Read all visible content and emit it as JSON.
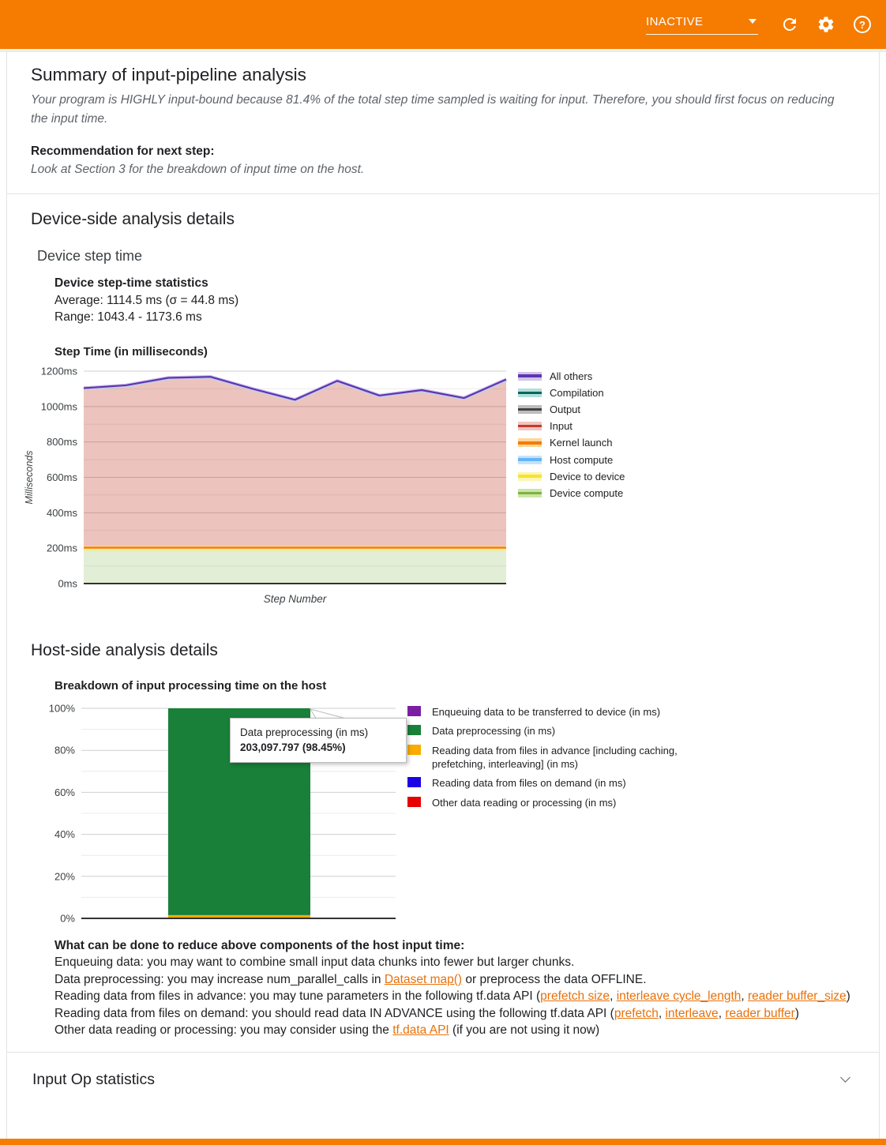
{
  "header": {
    "status_label": "INACTIVE",
    "bg_color": "#F57C00"
  },
  "summary": {
    "title": "Summary of input-pipeline analysis",
    "body": "Your program is HIGHLY input-bound because 81.4% of the total step time sampled is waiting for input. Therefore, you should first focus on reducing the input time.",
    "recommendation_label": "Recommendation for next step:",
    "recommendation": "Look at Section 3 for the breakdown of input time on the host."
  },
  "device_section": {
    "title": "Device-side analysis details",
    "subtitle": "Device step time",
    "stats_title": "Device step-time statistics",
    "average_line": "Average: 1114.5 ms (σ = 44.8 ms)",
    "range_line": "Range: 1043.4 - 1173.6 ms",
    "chart_title": "Step Time (in milliseconds)"
  },
  "host_section": {
    "title": "Host-side analysis details",
    "chart_title": "Breakdown of input processing time on the host"
  },
  "chart_data": [
    {
      "id": "device_step_time",
      "type": "area",
      "title": "Step Time (in milliseconds)",
      "xlabel": "Step Number",
      "ylabel": "Milliseconds",
      "ylim": [
        0,
        1200
      ],
      "yticks": [
        0,
        200,
        400,
        600,
        800,
        1000,
        1200
      ],
      "ytick_labels": [
        "0ms",
        "200ms",
        "400ms",
        "600ms",
        "800ms",
        "1000ms",
        "1200ms"
      ],
      "grid": "on",
      "legend_position": "right",
      "total_step_time_ms": [
        1104,
        1120,
        1162,
        1168,
        1100,
        1038,
        1145,
        1062,
        1093,
        1048,
        1153
      ],
      "series": [
        {
          "name": "All others",
          "dark": "#5E35B1",
          "light": "#D1C4E9",
          "values": [
            3,
            3,
            3,
            3,
            3,
            3,
            3,
            3,
            3,
            3,
            3
          ]
        },
        {
          "name": "Compilation",
          "dark": "#00695C",
          "light": "#B2DFDB",
          "values": [
            3,
            3,
            3,
            3,
            3,
            3,
            3,
            3,
            3,
            3,
            3
          ]
        },
        {
          "name": "Output",
          "dark": "#424242",
          "light": "#BDBDBD",
          "values": [
            0,
            0,
            0,
            0,
            0,
            0,
            0,
            0,
            0,
            0,
            0
          ],
          "line": false
        },
        {
          "name": "Input",
          "dark": "#C53929",
          "light": "#EFC4C0",
          "values": [
            895,
            911,
            953,
            959,
            891,
            829,
            936,
            853,
            884,
            839,
            944
          ],
          "line": false,
          "fill": "rgba(197,57,41,0.3)"
        },
        {
          "name": "Kernel launch",
          "dark": "#F57C00",
          "light": "#FFD699",
          "values": [
            7,
            7,
            7,
            7,
            7,
            7,
            7,
            7,
            7,
            7,
            7
          ]
        },
        {
          "name": "Host compute",
          "dark": "#64B5F6",
          "light": "#C6E2FB",
          "values": [
            0,
            0,
            0,
            0,
            0,
            0,
            0,
            0,
            0,
            0,
            0
          ],
          "line": false
        },
        {
          "name": "Device to device",
          "dark": "#F7E231",
          "light": "#FCF6B1",
          "values": [
            3,
            3,
            3,
            3,
            3,
            3,
            3,
            3,
            3,
            3,
            3
          ]
        },
        {
          "name": "Device compute",
          "dark": "#7CB342",
          "light": "#CDE5A8",
          "values": [
            193,
            193,
            193,
            193,
            193,
            193,
            193,
            193,
            193,
            193,
            193
          ],
          "fill": "rgba(124,179,66,0.22)"
        }
      ]
    },
    {
      "id": "host_input_breakdown",
      "type": "bar",
      "title": "Breakdown of input processing time on the host",
      "ylim": [
        0,
        100
      ],
      "yticks": [
        0,
        20,
        40,
        60,
        80,
        100
      ],
      "ytick_labels": [
        "0%",
        "20%",
        "40%",
        "60%",
        "80%",
        "100%"
      ],
      "grid": "on",
      "legend_position": "right",
      "series": [
        {
          "name": "Enqueuing data to be transferred to device (in ms)",
          "color": "#7B1FA2",
          "percent": 0
        },
        {
          "name": "Data preprocessing (in ms)",
          "color": "#188038",
          "percent": 98.45,
          "value_ms": 203097.797
        },
        {
          "name": "Reading data from files in advance [including caching, prefetching, interleaving] (in ms)",
          "color": "#F9AB00",
          "percent": 1.55
        },
        {
          "name": "Reading data from files on demand (in ms)",
          "color": "#1E00E5",
          "percent": 0
        },
        {
          "name": "Other data reading or processing (in ms)",
          "color": "#E60000",
          "percent": 0
        }
      ],
      "tooltip": {
        "label": "Data preprocessing (in ms)",
        "value": "203,097.797 (98.45%)"
      }
    }
  ],
  "tips": {
    "title": "What can be done to reduce above components of the host input time:",
    "link_color": "#E8710A",
    "lines": [
      {
        "segments": [
          {
            "t": "Enqueuing data: you may want to combine small input data chunks into fewer but larger chunks."
          }
        ]
      },
      {
        "segments": [
          {
            "t": "Data preprocessing: you may increase num_parallel_calls in "
          },
          {
            "t": "Dataset map()",
            "link": true
          },
          {
            "t": " or preprocess the data OFFLINE."
          }
        ]
      },
      {
        "segments": [
          {
            "t": "Reading data from files in advance: you may tune parameters in the following tf.data API ("
          },
          {
            "t": "prefetch size",
            "link": true
          },
          {
            "t": ", "
          },
          {
            "t": "interleave cycle_length",
            "link": true
          },
          {
            "t": ", "
          },
          {
            "t": "reader buffer_size",
            "link": true
          },
          {
            "t": ")"
          }
        ]
      },
      {
        "segments": [
          {
            "t": "Reading data from files on demand: you should read data IN ADVANCE using the following tf.data API ("
          },
          {
            "t": "prefetch",
            "link": true
          },
          {
            "t": ", "
          },
          {
            "t": "interleave",
            "link": true
          },
          {
            "t": ", "
          },
          {
            "t": "reader buffer",
            "link": true
          },
          {
            "t": ")"
          }
        ]
      },
      {
        "segments": [
          {
            "t": "Other data reading or processing: you may consider using the "
          },
          {
            "t": "tf.data API",
            "link": true
          },
          {
            "t": " (if you are not using it now)"
          }
        ]
      }
    ]
  },
  "input_op": {
    "title": "Input Op statistics"
  }
}
